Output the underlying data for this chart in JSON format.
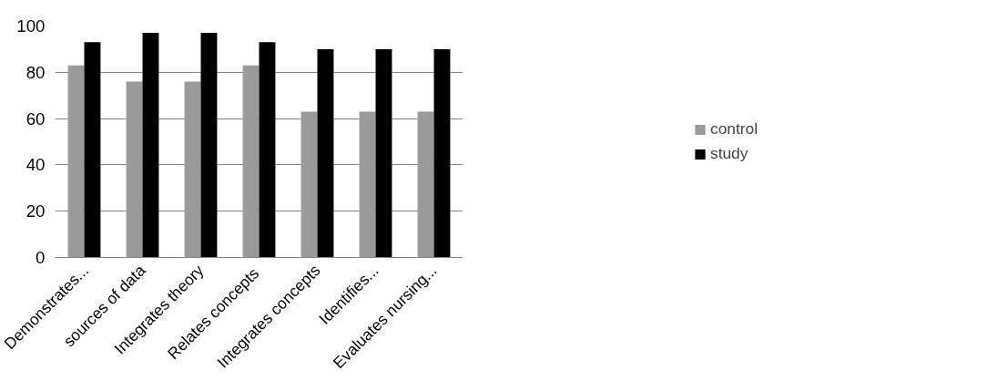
{
  "chart_data": {
    "type": "bar",
    "categories": [
      "Demonstrates...",
      "sources of data",
      "Integrates theory",
      "Relates  concepts",
      "Integrates concepts",
      "Identifies...",
      "Evaluates nursing..."
    ],
    "series": [
      {
        "name": "control",
        "color": "#9a9a9a",
        "values": [
          83,
          76,
          76,
          83,
          63,
          63,
          63
        ]
      },
      {
        "name": "study",
        "color": "#000000",
        "values": [
          93,
          97,
          97,
          93,
          90,
          90,
          90
        ]
      }
    ],
    "ylim": [
      0,
      100
    ],
    "yticks": [
      0,
      20,
      40,
      60,
      80,
      100
    ],
    "grid": "y",
    "legend": "right"
  }
}
